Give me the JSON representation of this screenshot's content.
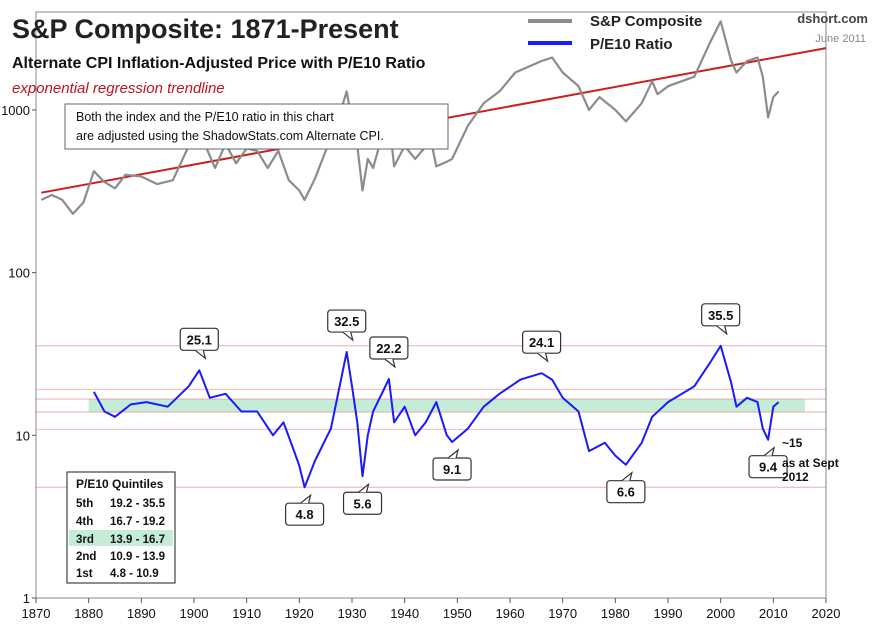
{
  "header": {
    "title": "S&P Composite: 1871-Present",
    "subtitle": "Alternate CPI Inflation-Adjusted  Price with P/E10 Ratio",
    "trend_note": "exponential regression trendline",
    "source": "dshort.com",
    "date": "June 2011"
  },
  "legend": [
    {
      "label": "S&P Composite",
      "color": "#8c8c8c"
    },
    {
      "label": "P/E10 Ratio",
      "color": "#1a1aff"
    }
  ],
  "infobox": {
    "line1": "Both the index and the P/E10 ratio in this chart",
    "line2": "are adjusted using the ShadowStats.com  Alternate CPI."
  },
  "side_note": {
    "line1": "~15",
    "line2": "as at Sept",
    "line3": "2012"
  },
  "quintiles": {
    "title": "P/E10 Quintiles",
    "rows": [
      {
        "name": "5th",
        "range": "19.2 - 35.5"
      },
      {
        "name": "4th",
        "range": "16.7 - 19.2"
      },
      {
        "name": "3rd",
        "range": "13.9 - 16.7"
      },
      {
        "name": "2nd",
        "range": "10.9 - 13.9"
      },
      {
        "name": "1st",
        "range": "4.8 - 10.9"
      }
    ]
  },
  "chart_data": {
    "type": "line",
    "scale": "log",
    "xlim": [
      1870,
      2020
    ],
    "ylim": [
      1,
      4000
    ],
    "x_ticks": [
      1870,
      1880,
      1890,
      1900,
      1910,
      1920,
      1930,
      1940,
      1950,
      1960,
      1970,
      1980,
      1990,
      2000,
      2010,
      2020
    ],
    "y_ticks": [
      1,
      10,
      100,
      1000
    ],
    "grid": false,
    "legend_position": "top-right",
    "colors": {
      "sp": "#8c8c8c",
      "pe": "#1a1aff",
      "trend": "#cc1f1f",
      "band": "#c5ecd6",
      "quintile_line": "#e3a3a3"
    },
    "quintile_lines": [
      4.8,
      10.9,
      13.9,
      16.7,
      19.2,
      35.5
    ],
    "third_quintile_band": [
      13.9,
      16.7
    ],
    "trendline": {
      "x": [
        1871,
        2020
      ],
      "y": [
        310,
        2400
      ]
    },
    "series": [
      {
        "name": "S&P Composite",
        "x": [
          1871,
          1873,
          1875,
          1877,
          1879,
          1881,
          1883,
          1885,
          1887,
          1890,
          1893,
          1896,
          1899,
          1902,
          1904,
          1906,
          1908,
          1910,
          1912,
          1914,
          1916,
          1918,
          1920,
          1921,
          1923,
          1925,
          1927,
          1929,
          1930,
          1931,
          1932,
          1933,
          1934,
          1936,
          1937,
          1938,
          1940,
          1942,
          1945,
          1946,
          1948,
          1949,
          1952,
          1955,
          1958,
          1961,
          1966,
          1968,
          1970,
          1973,
          1975,
          1977,
          1980,
          1982,
          1985,
          1987,
          1988,
          1990,
          1995,
          1998,
          2000,
          2002,
          2003,
          2005,
          2007,
          2008,
          2009,
          2010,
          2011
        ],
        "y": [
          280,
          300,
          280,
          230,
          270,
          420,
          360,
          330,
          400,
          390,
          350,
          370,
          600,
          620,
          440,
          620,
          470,
          580,
          560,
          440,
          560,
          370,
          320,
          280,
          380,
          560,
          800,
          1300,
          850,
          600,
          320,
          500,
          440,
          750,
          900,
          450,
          600,
          500,
          650,
          450,
          480,
          500,
          800,
          1100,
          1300,
          1700,
          2000,
          2100,
          1700,
          1400,
          1000,
          1200,
          1000,
          850,
          1100,
          1500,
          1250,
          1400,
          1600,
          2600,
          3500,
          2000,
          1700,
          2000,
          2100,
          1600,
          900,
          1200,
          1300
        ]
      },
      {
        "name": "P/E10 Ratio",
        "x": [
          1881,
          1883,
          1885,
          1888,
          1891,
          1895,
          1899,
          1901,
          1903,
          1906,
          1909,
          1912,
          1915,
          1917,
          1919,
          1920,
          1921,
          1923,
          1926,
          1929,
          1930,
          1931,
          1932,
          1933,
          1934,
          1936,
          1937,
          1938,
          1940,
          1942,
          1944,
          1946,
          1948,
          1949,
          1952,
          1955,
          1958,
          1962,
          1966,
          1968,
          1970,
          1973,
          1975,
          1978,
          1980,
          1982,
          1985,
          1987,
          1990,
          1995,
          1998,
          2000,
          2002,
          2003,
          2005,
          2007,
          2008,
          2009,
          2010,
          2011
        ],
        "y": [
          18.5,
          14,
          13,
          15.5,
          16,
          15,
          20,
          25.1,
          17,
          18,
          14,
          14,
          10,
          12,
          8,
          6.5,
          4.8,
          7,
          11,
          32.5,
          20,
          12,
          5.6,
          10,
          14,
          19,
          22.2,
          12,
          15,
          10,
          12,
          16,
          10,
          9.1,
          11,
          15,
          18,
          22,
          24.1,
          22,
          17,
          14,
          8,
          9,
          7.5,
          6.6,
          9,
          13,
          16,
          20,
          28,
          35.5,
          21,
          15,
          17,
          16,
          11,
          9.4,
          15,
          16
        ]
      }
    ],
    "annotations": [
      {
        "text": "25.1",
        "x": 1901,
        "y": 25.1
      },
      {
        "text": "32.5",
        "x": 1929,
        "y": 32.5
      },
      {
        "text": "22.2",
        "x": 1937,
        "y": 22.2
      },
      {
        "text": "24.1",
        "x": 1966,
        "y": 24.1
      },
      {
        "text": "35.5",
        "x": 2000,
        "y": 35.5
      },
      {
        "text": "4.8",
        "x": 1921,
        "y": 4.8
      },
      {
        "text": "5.6",
        "x": 1932,
        "y": 5.6
      },
      {
        "text": "9.1",
        "x": 1949,
        "y": 9.1
      },
      {
        "text": "6.6",
        "x": 1982,
        "y": 6.6
      },
      {
        "text": "9.4",
        "x": 2009,
        "y": 9.4
      }
    ]
  }
}
